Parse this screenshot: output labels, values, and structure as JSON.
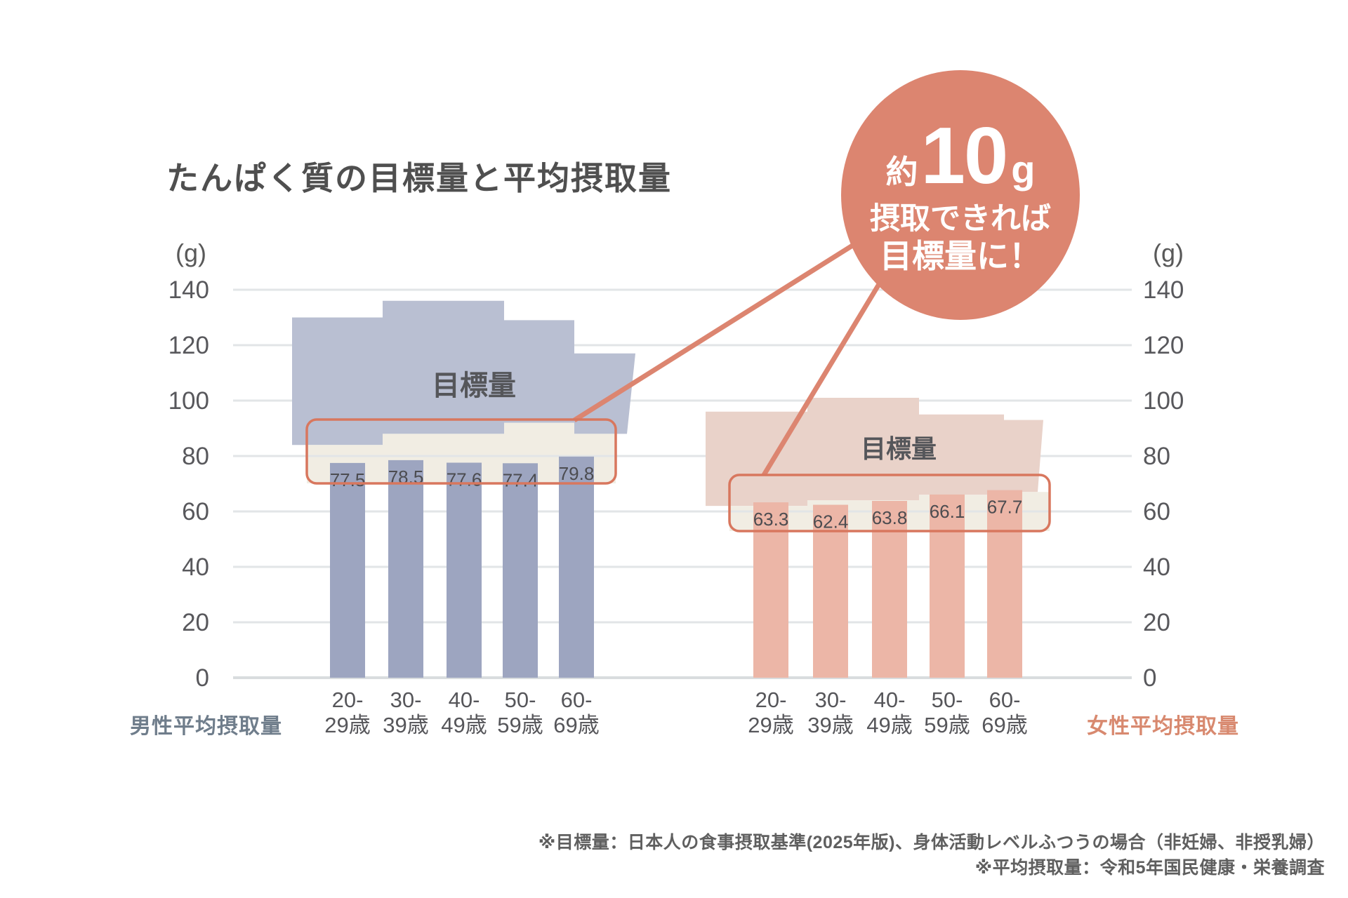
{
  "chart": {
    "title": "たんぱく質の目標量と平均摂取量",
    "unit_label": "(g)",
    "target_band_label": "目標量",
    "male_series_label": "男性平均摂取量",
    "female_series_label": "女性平均摂取量",
    "callout": {
      "line1_prefix": "約",
      "line1_number": "10",
      "line1_suffix": "g",
      "line2": "摂取できれば",
      "line3": "目標量に！"
    },
    "footnote_line1": "※目標量：日本人の食事摂取基準(2025年版)、身体活動レベルふつうの場合（非妊婦、非授乳婦）",
    "footnote_line2": "※平均摂取量：令和5年国民健康・栄養調査"
  },
  "chart_data": {
    "type": "bar",
    "title": "たんぱく質の目標量と平均摂取量",
    "unit": "g",
    "categories": [
      "20-29歳",
      "30-39歳",
      "40-49歳",
      "50-59歳",
      "60-69歳"
    ],
    "category_tick_lines": [
      [
        "20-",
        "29歳"
      ],
      [
        "30-",
        "39歳"
      ],
      [
        "40-",
        "49歳"
      ],
      [
        "50-",
        "59歳"
      ],
      [
        "60-",
        "69歳"
      ]
    ],
    "series": [
      {
        "name": "男性平均摂取量",
        "values": [
          77.5,
          78.5,
          77.6,
          77.4,
          79.8
        ]
      },
      {
        "name": "女性平均摂取量",
        "values": [
          63.3,
          62.4,
          63.8,
          66.1,
          67.7
        ]
      }
    ],
    "target_bands": {
      "label": "目標量",
      "male_ranges_g": [
        [
          84,
          130
        ],
        [
          88,
          136
        ],
        [
          88,
          136
        ],
        [
          92,
          129
        ],
        [
          88,
          117
        ]
      ],
      "female_ranges_g": [
        [
          62,
          96
        ],
        [
          64,
          101
        ],
        [
          64,
          101
        ],
        [
          66,
          95
        ],
        [
          67,
          93
        ]
      ]
    },
    "y_axis": {
      "min": 0,
      "max": 140,
      "step": 20,
      "ticks": [
        140,
        120,
        100,
        80,
        60,
        40,
        20,
        0
      ],
      "unit_label": "(g)"
    },
    "annotation": "約10g 摂取できれば 目標量に！",
    "legend_position": "below-axis"
  },
  "colors": {
    "male_bar": "#9da5c0",
    "male_band": "#b9bfd2",
    "female_bar": "#ecb6a7",
    "female_band": "#e9d2c9",
    "cream_gap": "#f1ede3",
    "accent_orange": "#d8775e",
    "callout_fill": "#dc8570",
    "gridline": "#e2e5e7",
    "baseline": "#d9dcde",
    "text_dark": "#4f4f4f",
    "tick_text": "#58585c",
    "value_text": "#4c4c50",
    "band_label_text": "#55565a",
    "male_legend_text": "#6f7d8b",
    "female_legend_text": "#d8896f"
  }
}
